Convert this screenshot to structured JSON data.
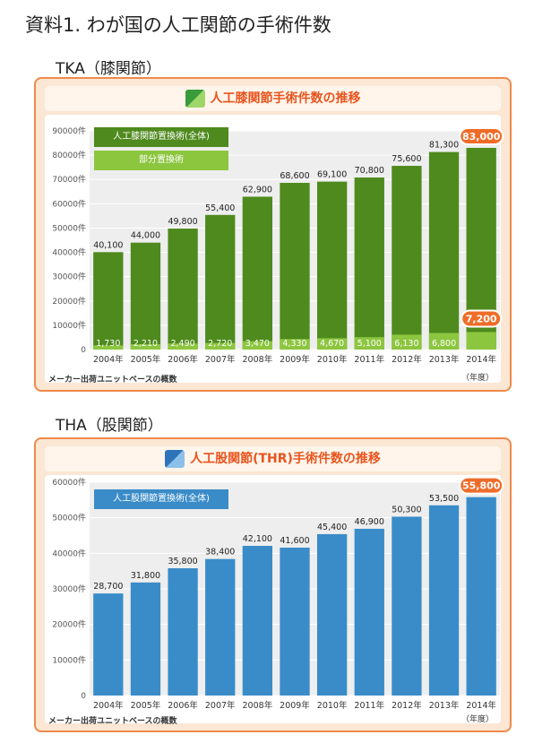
{
  "page_title": "資料1. わが国の人工関節の手術件数",
  "chart_data": [
    {
      "section_title": "TKA（膝関節）",
      "type": "bar",
      "title": "人工膝関節手術件数の推移",
      "categories": [
        "2004年",
        "2005年",
        "2006年",
        "2007年",
        "2008年",
        "2009年",
        "2010年",
        "2011年",
        "2012年",
        "2013年",
        "2014年"
      ],
      "series": [
        {
          "name": "人工膝関節置換術(全体)",
          "values": [
            40100,
            44000,
            49800,
            55400,
            62900,
            68600,
            69100,
            70800,
            75600,
            81300,
            83000
          ],
          "labels": [
            "40,100",
            "44,000",
            "49,800",
            "55,400",
            "62,900",
            "68,600",
            "69,100",
            "70,800",
            "75,600",
            "81,300",
            "83,000"
          ],
          "color": "#4e8a1d"
        },
        {
          "name": "部分置換術",
          "values": [
            1730,
            2210,
            2490,
            2720,
            3470,
            4330,
            4670,
            5100,
            6130,
            6800,
            7200
          ],
          "labels": [
            "1,730",
            "2,210",
            "2,490",
            "2,720",
            "3,470",
            "4,330",
            "4,670",
            "5,100",
            "6,130",
            "6,800",
            "7,200"
          ],
          "color": "#8cc63f"
        }
      ],
      "yticks": [
        "0",
        "10000件",
        "20000件",
        "30000件",
        "40000件",
        "50000件",
        "60000件",
        "70000件",
        "80000件",
        "90000件"
      ],
      "ylim": [
        0,
        90000
      ],
      "ystep": 10000,
      "highlight_last": true,
      "footnote": "メーカー出荷ユニットベースの概数",
      "unit_note": "（年度）",
      "legend_placement": "top-left",
      "grid": true
    },
    {
      "section_title": "THA（股関節）",
      "type": "bar",
      "title": "人工股関節(THR)手術件数の推移",
      "categories": [
        "2004年",
        "2005年",
        "2006年",
        "2007年",
        "2008年",
        "2009年",
        "2010年",
        "2011年",
        "2012年",
        "2013年",
        "2014年"
      ],
      "series": [
        {
          "name": "人工股関節置換術(全体)",
          "values": [
            28700,
            31800,
            35800,
            38400,
            42100,
            41600,
            45400,
            46900,
            50300,
            53500,
            55800
          ],
          "labels": [
            "28,700",
            "31,800",
            "35,800",
            "38,400",
            "42,100",
            "41,600",
            "45,400",
            "46,900",
            "50,300",
            "53,500",
            "55,800"
          ],
          "color": "#3a8cc8"
        }
      ],
      "yticks": [
        "0",
        "10000件",
        "20000件",
        "30000件",
        "40000件",
        "50000件",
        "60000件"
      ],
      "ylim": [
        0,
        60000
      ],
      "ystep": 10000,
      "highlight_last": true,
      "footnote": "メーカー出荷ユニットベースの概数",
      "unit_note": "（年度）",
      "legend_placement": "top-left",
      "grid": true
    }
  ]
}
